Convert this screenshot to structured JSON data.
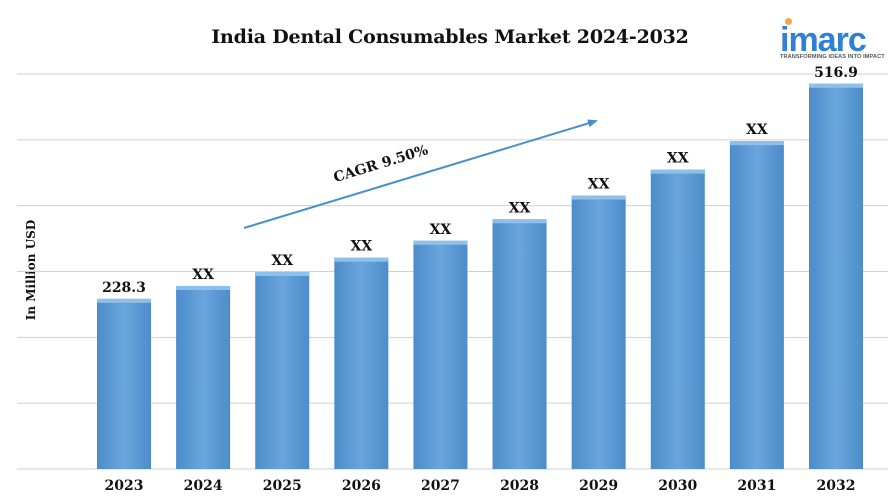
{
  "title": "India Dental Consumables Market 2024-2032",
  "logo": {
    "name": "imarc",
    "tagline": "TRANSFORMING IDEAS INTO IMPACT"
  },
  "cagr_label": "CAGR 9.50%",
  "colors": {
    "bar": "#5b9bd5",
    "bar_top": "#8ec0ea",
    "arrow": "#4a8fcc",
    "grid": "#d0d0d0",
    "logo": "#2f80d6",
    "logo_dot": "#f4a742"
  },
  "chart_data": {
    "type": "bar",
    "title": "India Dental Consumables Market 2024-2032",
    "xlabel": "",
    "ylabel": "In Million USD",
    "categories": [
      "2023",
      "2024",
      "2025",
      "2026",
      "2027",
      "2028",
      "2029",
      "2030",
      "2031",
      "2032"
    ],
    "values": [
      228.3,
      245.6,
      264.3,
      283.5,
      306.2,
      335.1,
      366.9,
      401.7,
      439.9,
      516.9
    ],
    "data_labels": [
      "228.3",
      "XX",
      "XX",
      "XX",
      "XX",
      "XX",
      "XX",
      "XX",
      "XX",
      "516.9"
    ],
    "ylim": [
      0,
      530
    ],
    "grid": true,
    "legend": "none"
  }
}
